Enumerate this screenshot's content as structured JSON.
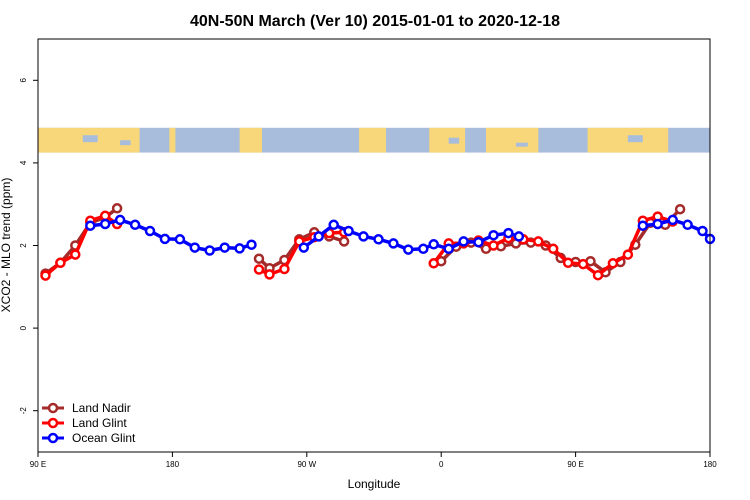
{
  "chart_data": {
    "type": "line",
    "title": "40N-50N March (Ver 10)   2015-01-01 to 2020-12-18",
    "xlabel": "Longitude",
    "ylabel": "XCO2 - MLO trend (ppm)",
    "x_ticks": [
      {
        "value": 0,
        "label": "90 E"
      },
      {
        "value": 90,
        "label": "180"
      },
      {
        "value": 180,
        "label": "90 W"
      },
      {
        "value": 270,
        "label": "0"
      },
      {
        "value": 360,
        "label": "90 E"
      },
      {
        "value": 450,
        "label": "180"
      }
    ],
    "y_ticks": [
      -2,
      0,
      2,
      4,
      6
    ],
    "xlim": [
      0,
      450
    ],
    "ylim": [
      -3,
      7
    ],
    "grid": false,
    "legend_position": "bottom-left",
    "colors": {
      "land_nadir": "#a52a2a",
      "land_glint": "#ff0000",
      "ocean_glint": "#0000ff",
      "map_ocean": "#a8bddc",
      "map_land": "#f8d77a"
    },
    "map_band": {
      "y_bottom": 4.25,
      "y_top": 4.85
    },
    "series": [
      {
        "name": "Land Nadir",
        "color": "#a52a2a",
        "segments": [
          [
            [
              5,
              1.32
            ],
            [
              15,
              1.58
            ],
            [
              25,
              2.0
            ],
            [
              35,
              2.55
            ],
            [
              45,
              2.68
            ],
            [
              53,
              2.9
            ]
          ],
          [
            [
              148,
              1.68
            ],
            [
              155,
              1.45
            ],
            [
              165,
              1.65
            ],
            [
              175,
              2.15
            ],
            [
              185,
              2.32
            ],
            [
              195,
              2.22
            ],
            [
              205,
              2.1
            ]
          ],
          [
            [
              270,
              1.62
            ],
            [
              280,
              1.97
            ],
            [
              290,
              2.07
            ],
            [
              300,
              1.92
            ],
            [
              310,
              1.98
            ],
            [
              320,
              2.05
            ],
            [
              330,
              2.07
            ],
            [
              340,
              2.0
            ],
            [
              350,
              1.7
            ],
            [
              360,
              1.6
            ],
            [
              370,
              1.62
            ],
            [
              380,
              1.35
            ],
            [
              390,
              1.6
            ],
            [
              400,
              2.02
            ],
            [
              410,
              2.55
            ],
            [
              420,
              2.5
            ],
            [
              430,
              2.88
            ]
          ]
        ]
      },
      {
        "name": "Land Glint",
        "color": "#ff0000",
        "segments": [
          [
            [
              5,
              1.27
            ],
            [
              15,
              1.58
            ],
            [
              25,
              1.78
            ],
            [
              35,
              2.6
            ],
            [
              45,
              2.72
            ],
            [
              53,
              2.52
            ]
          ],
          [
            [
              148,
              1.42
            ],
            [
              155,
              1.3
            ],
            [
              165,
              1.43
            ],
            [
              175,
              2.1
            ],
            [
              185,
              2.2
            ],
            [
              195,
              2.3
            ],
            [
              205,
              2.32
            ]
          ],
          [
            [
              265,
              1.57
            ],
            [
              275,
              2.05
            ],
            [
              285,
              2.05
            ],
            [
              295,
              2.12
            ],
            [
              305,
              2.0
            ],
            [
              315,
              2.18
            ],
            [
              325,
              2.15
            ],
            [
              335,
              2.1
            ],
            [
              345,
              1.92
            ],
            [
              355,
              1.58
            ],
            [
              365,
              1.55
            ],
            [
              375,
              1.28
            ],
            [
              385,
              1.57
            ],
            [
              395,
              1.78
            ],
            [
              405,
              2.6
            ],
            [
              415,
              2.7
            ],
            [
              425,
              2.58
            ]
          ]
        ]
      },
      {
        "name": "Ocean Glint",
        "color": "#0000ff",
        "segments": [
          [
            [
              35,
              2.48
            ],
            [
              45,
              2.52
            ],
            [
              55,
              2.62
            ],
            [
              65,
              2.5
            ],
            [
              75,
              2.35
            ],
            [
              85,
              2.16
            ],
            [
              95,
              2.15
            ],
            [
              105,
              1.95
            ],
            [
              115,
              1.88
            ],
            [
              125,
              1.95
            ],
            [
              135,
              1.93
            ],
            [
              143,
              2.02
            ]
          ],
          [
            [
              178,
              1.95
            ],
            [
              188,
              2.22
            ],
            [
              198,
              2.5
            ],
            [
              208,
              2.35
            ],
            [
              218,
              2.22
            ],
            [
              228,
              2.15
            ],
            [
              238,
              2.05
            ],
            [
              248,
              1.9
            ],
            [
              258,
              1.92
            ],
            [
              265,
              2.03
            ],
            [
              275,
              1.92
            ],
            [
              285,
              2.1
            ],
            [
              295,
              2.08
            ],
            [
              305,
              2.25
            ],
            [
              315,
              2.3
            ],
            [
              322,
              2.22
            ]
          ],
          [
            [
              405,
              2.48
            ],
            [
              415,
              2.52
            ],
            [
              425,
              2.62
            ],
            [
              435,
              2.5
            ],
            [
              445,
              2.35
            ],
            [
              450,
              2.16
            ]
          ]
        ]
      }
    ]
  }
}
